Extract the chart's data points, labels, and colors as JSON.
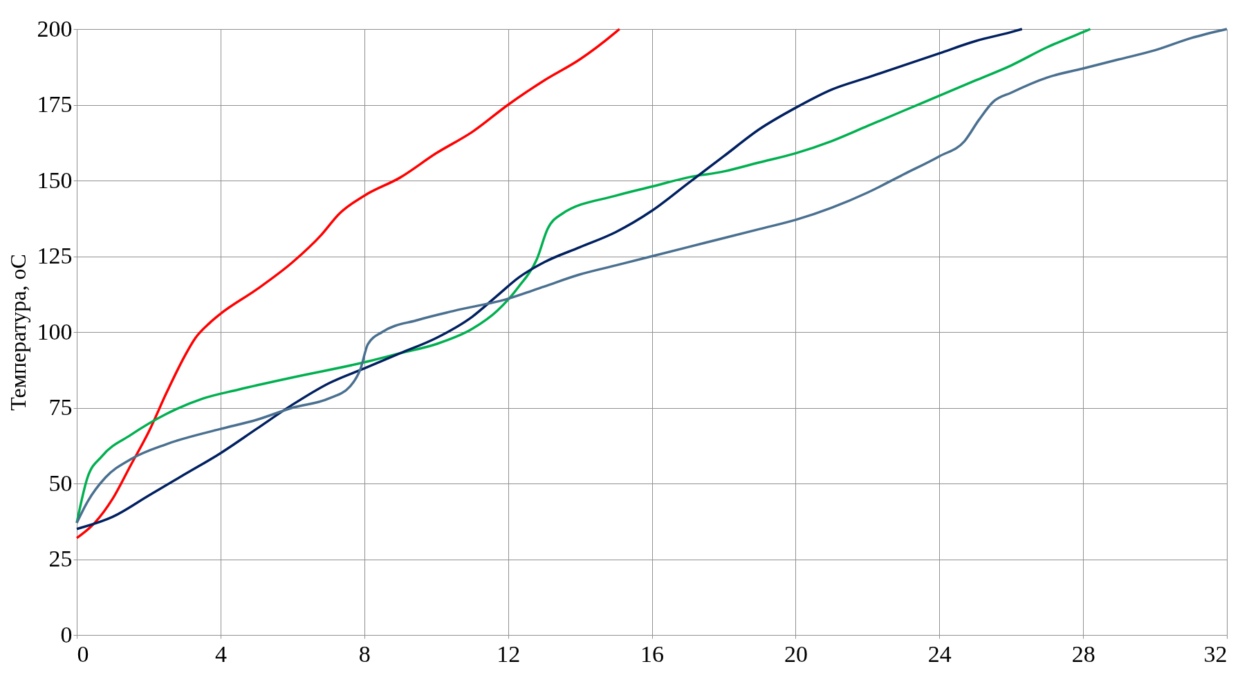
{
  "chart_data": {
    "type": "line",
    "ylabel": "Температура, оС",
    "xlim": [
      0,
      32
    ],
    "xticks": [
      0,
      4,
      8,
      12,
      16,
      20,
      24,
      28,
      32
    ],
    "ylim": [
      0,
      200
    ],
    "yticks": [
      0,
      25,
      50,
      75,
      100,
      125,
      150,
      175,
      200
    ],
    "grid": true,
    "legend": false,
    "marker": "none",
    "line_style": "solid",
    "series": [
      {
        "color": "#ff0000",
        "x": [
          0,
          0.5,
          1,
          1.5,
          2,
          2.5,
          3,
          3.3,
          3.7,
          4,
          5,
          6,
          6.8,
          7.3,
          8,
          9,
          10,
          11,
          12,
          13,
          14,
          15,
          15.1
        ],
        "values": [
          32,
          37,
          45,
          56,
          67,
          80,
          92,
          98,
          103,
          106,
          114,
          123,
          132,
          139,
          145,
          151,
          159,
          166,
          175,
          183,
          190,
          199,
          200
        ]
      },
      {
        "color": "#00b050",
        "x": [
          0,
          0.3,
          0.7,
          1.5,
          2.5,
          3.5,
          4.5,
          6,
          8,
          9,
          10,
          11,
          11.7,
          12.3,
          12.8,
          13.1,
          13.5,
          15,
          16,
          17,
          18,
          19,
          20,
          21,
          22,
          23,
          24,
          25,
          26,
          27,
          28,
          28.2
        ],
        "values": [
          37,
          52,
          59,
          66,
          73,
          78,
          81,
          85,
          90,
          93,
          96,
          101,
          107,
          115,
          124,
          134,
          139,
          145,
          148,
          151,
          153,
          156,
          159,
          163,
          168,
          173,
          178,
          183,
          188,
          194,
          199,
          200
        ]
      },
      {
        "color": "#002060",
        "x": [
          0,
          1,
          2,
          3,
          4,
          5,
          6,
          7,
          8,
          9,
          10,
          11,
          11.7,
          12.3,
          13,
          14,
          15,
          16,
          17,
          18,
          19,
          20,
          21,
          22,
          23,
          24,
          25,
          26,
          26.3
        ],
        "values": [
          35,
          39,
          46,
          53,
          60,
          68,
          76,
          83,
          88,
          93,
          98,
          105,
          112,
          118,
          123,
          128,
          133,
          140,
          149,
          158,
          167,
          174,
          180,
          184,
          188,
          192,
          196,
          199,
          200
        ]
      },
      {
        "color": "#4a7090",
        "x": [
          0,
          0.3,
          0.8,
          1.5,
          2.5,
          4,
          5,
          6,
          7,
          7.6,
          7.9,
          8.1,
          8.5,
          9.5,
          10.5,
          12,
          13,
          14,
          15,
          16,
          17,
          18,
          19,
          20,
          21,
          22,
          23,
          24,
          24.7,
          25.1,
          25.5,
          26,
          27,
          28,
          29,
          30,
          31,
          32
        ],
        "values": [
          37,
          44,
          52,
          58,
          63,
          68,
          71,
          75,
          78,
          82,
          88,
          96,
          100,
          104,
          107,
          111,
          115,
          119,
          122,
          125,
          128,
          131,
          134,
          137,
          141,
          146,
          152,
          158,
          163,
          170,
          176,
          179,
          184,
          187,
          190,
          193,
          197,
          200
        ]
      }
    ]
  }
}
